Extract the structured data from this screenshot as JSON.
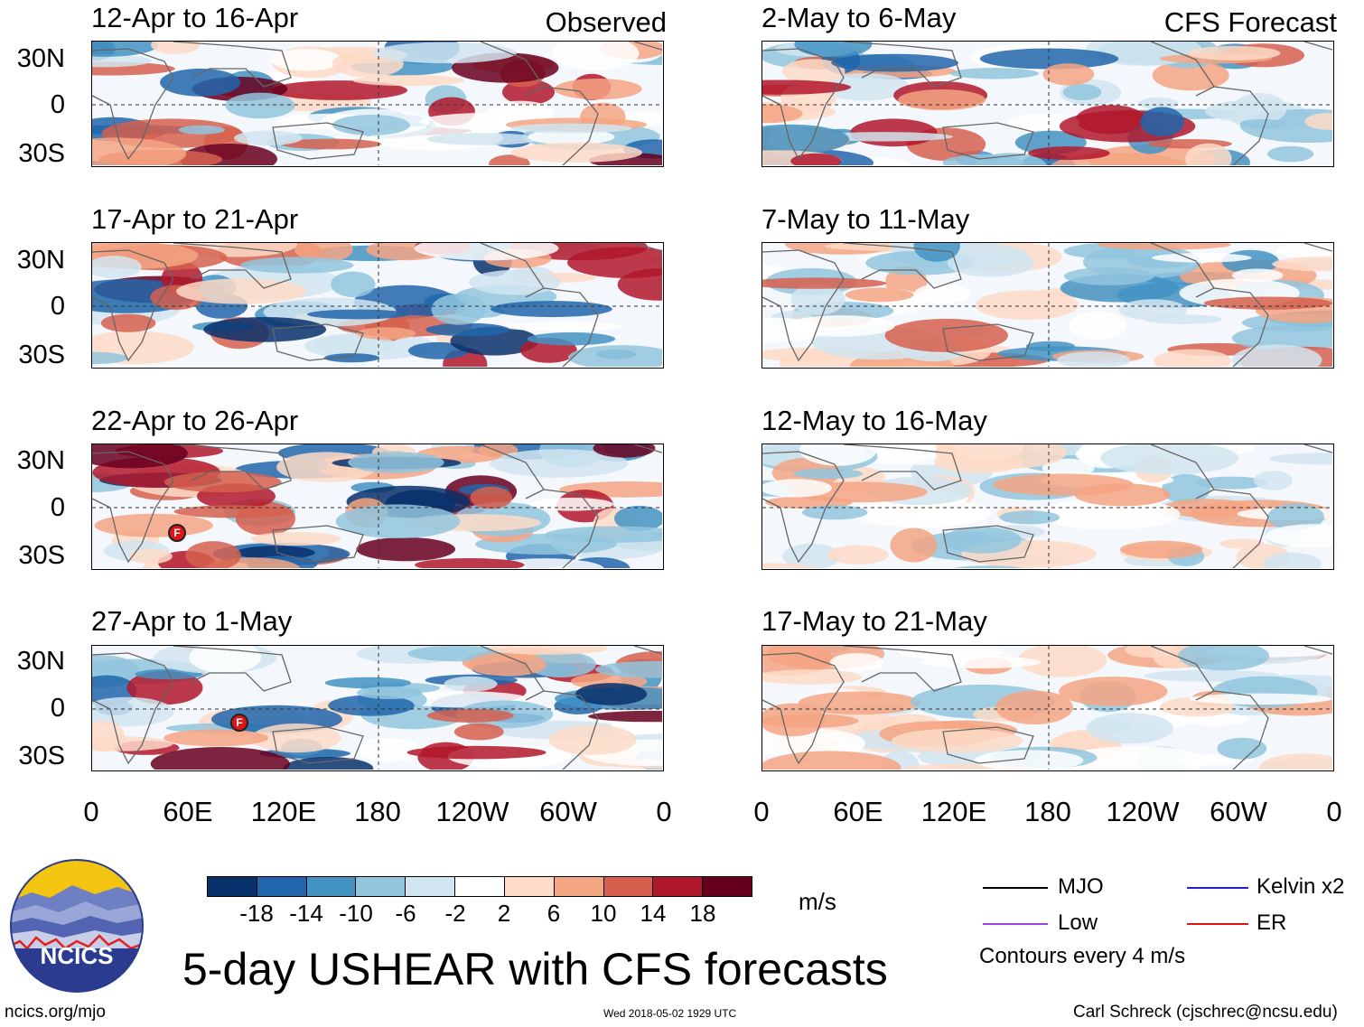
{
  "columns": {
    "left_heading": "Observed",
    "right_heading": "CFS Forecast"
  },
  "panels": {
    "left": [
      {
        "title": "12-Apr to 16-Apr"
      },
      {
        "title": "17-Apr to 21-Apr"
      },
      {
        "title": "22-Apr to 26-Apr"
      },
      {
        "title": "27-Apr to 1-May"
      }
    ],
    "right": [
      {
        "title": "2-May to 6-May"
      },
      {
        "title": "7-May to 11-May"
      },
      {
        "title": "12-May to 16-May"
      },
      {
        "title": "17-May to 21-May"
      }
    ]
  },
  "axes": {
    "lat_labels": [
      "30N",
      "0",
      "30S"
    ],
    "lon_labels": [
      "0",
      "60E",
      "120E",
      "180",
      "120W",
      "60W",
      "0"
    ]
  },
  "colorbar": {
    "colors": [
      "#08306b",
      "#2166ac",
      "#4393c3",
      "#92c5de",
      "#d1e5f0",
      "#ffffff",
      "#fddbc7",
      "#f4a582",
      "#d6604d",
      "#b2182b",
      "#67001f"
    ],
    "labels": [
      "-18",
      "-14",
      "-10",
      "-6",
      "-2",
      "2",
      "6",
      "10",
      "14",
      "18"
    ],
    "units": "m/s"
  },
  "legend": {
    "items": [
      {
        "label": "MJO",
        "color": "#000000"
      },
      {
        "label": "Kelvin x2",
        "color": "#1f22c9"
      },
      {
        "label": "Low",
        "color": "#a040e0"
      },
      {
        "label": "ER",
        "color": "#e01414"
      }
    ],
    "note": "Contours every 4 m/s"
  },
  "logo": {
    "text": "NCICS"
  },
  "main_title": "5-day USHEAR with CFS forecasts",
  "footer": {
    "url": "ncics.org/mjo",
    "timestamp": "Wed 2018-05-02 1929 UTC",
    "credit": "Carl Schreck (cjschrec@ncsu.edu)"
  },
  "markers": [
    {
      "panel": "left-3",
      "symbol": "F"
    },
    {
      "panel": "left-4",
      "symbol": "F"
    }
  ]
}
